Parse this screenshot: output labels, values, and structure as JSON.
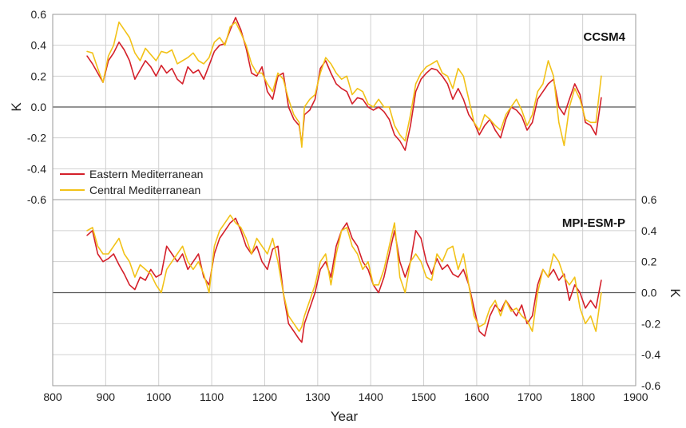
{
  "chart_data": [
    {
      "type": "line",
      "panel_label": "CCSM4",
      "ylabel": "K",
      "y_axis_side": "left",
      "ylim": [
        -0.6,
        0.6
      ],
      "yticks": [
        "0.6",
        "0.4",
        "0.2",
        "0.0",
        "-0.2",
        "-0.4",
        "-0.6"
      ],
      "xlim": [
        800,
        1900
      ],
      "legend_placement": "bottom-left",
      "series": [
        {
          "name": "Eastern Mediterranean",
          "color": "#d4202a",
          "x": [
            865,
            875,
            885,
            895,
            905,
            915,
            925,
            935,
            945,
            955,
            965,
            975,
            985,
            995,
            1005,
            1015,
            1025,
            1035,
            1045,
            1055,
            1065,
            1075,
            1085,
            1095,
            1105,
            1115,
            1125,
            1135,
            1145,
            1155,
            1165,
            1175,
            1185,
            1195,
            1205,
            1215,
            1225,
            1235,
            1245,
            1255,
            1265,
            1270,
            1275,
            1285,
            1295,
            1305,
            1315,
            1325,
            1335,
            1345,
            1355,
            1365,
            1375,
            1385,
            1395,
            1405,
            1415,
            1425,
            1435,
            1445,
            1455,
            1465,
            1475,
            1485,
            1495,
            1505,
            1515,
            1525,
            1535,
            1545,
            1555,
            1565,
            1575,
            1585,
            1595,
            1605,
            1615,
            1625,
            1635,
            1645,
            1655,
            1665,
            1675,
            1685,
            1695,
            1705,
            1715,
            1725,
            1735,
            1745,
            1755,
            1765,
            1775,
            1785,
            1795,
            1805,
            1815,
            1825,
            1835
          ],
          "values": [
            0.33,
            0.28,
            0.22,
            0.16,
            0.3,
            0.35,
            0.42,
            0.37,
            0.3,
            0.18,
            0.24,
            0.3,
            0.26,
            0.2,
            0.27,
            0.22,
            0.25,
            0.18,
            0.15,
            0.26,
            0.22,
            0.24,
            0.18,
            0.27,
            0.36,
            0.4,
            0.41,
            0.5,
            0.58,
            0.5,
            0.38,
            0.22,
            0.2,
            0.26,
            0.1,
            0.05,
            0.2,
            0.22,
            0.0,
            -0.08,
            -0.12,
            -0.24,
            -0.05,
            -0.02,
            0.05,
            0.25,
            0.3,
            0.22,
            0.15,
            0.12,
            0.1,
            0.02,
            0.06,
            0.05,
            0.0,
            -0.02,
            0.0,
            -0.03,
            -0.08,
            -0.18,
            -0.22,
            -0.28,
            -0.12,
            0.1,
            0.18,
            0.22,
            0.25,
            0.24,
            0.2,
            0.15,
            0.05,
            0.12,
            0.05,
            -0.05,
            -0.1,
            -0.18,
            -0.12,
            -0.08,
            -0.15,
            -0.2,
            -0.08,
            0.0,
            -0.02,
            -0.06,
            -0.15,
            -0.1,
            0.05,
            0.1,
            0.15,
            0.18,
            0.0,
            -0.05,
            0.05,
            0.15,
            0.08,
            -0.1,
            -0.12,
            -0.18,
            0.06
          ]
        },
        {
          "name": "Central Mediterranean",
          "color": "#f2c218",
          "x": [
            865,
            875,
            885,
            895,
            905,
            915,
            925,
            935,
            945,
            955,
            965,
            975,
            985,
            995,
            1005,
            1015,
            1025,
            1035,
            1045,
            1055,
            1065,
            1075,
            1085,
            1095,
            1105,
            1115,
            1125,
            1135,
            1145,
            1155,
            1165,
            1175,
            1185,
            1195,
            1205,
            1215,
            1225,
            1235,
            1245,
            1255,
            1265,
            1270,
            1275,
            1285,
            1295,
            1305,
            1315,
            1325,
            1335,
            1345,
            1355,
            1365,
            1375,
            1385,
            1395,
            1405,
            1415,
            1425,
            1435,
            1445,
            1455,
            1465,
            1475,
            1485,
            1495,
            1505,
            1515,
            1525,
            1535,
            1545,
            1555,
            1565,
            1575,
            1585,
            1595,
            1605,
            1615,
            1625,
            1635,
            1645,
            1655,
            1665,
            1675,
            1685,
            1695,
            1705,
            1715,
            1725,
            1735,
            1745,
            1755,
            1765,
            1775,
            1785,
            1795,
            1805,
            1815,
            1825,
            1835
          ],
          "values": [
            0.36,
            0.35,
            0.25,
            0.16,
            0.33,
            0.4,
            0.55,
            0.5,
            0.45,
            0.35,
            0.3,
            0.38,
            0.34,
            0.3,
            0.36,
            0.35,
            0.37,
            0.28,
            0.3,
            0.32,
            0.35,
            0.3,
            0.28,
            0.32,
            0.42,
            0.45,
            0.4,
            0.52,
            0.55,
            0.48,
            0.4,
            0.28,
            0.22,
            0.22,
            0.15,
            0.1,
            0.22,
            0.18,
            0.05,
            -0.05,
            -0.1,
            -0.26,
            0.0,
            0.05,
            0.08,
            0.22,
            0.32,
            0.28,
            0.22,
            0.18,
            0.2,
            0.08,
            0.12,
            0.1,
            0.02,
            0.0,
            0.05,
            0.0,
            0.0,
            -0.12,
            -0.18,
            -0.22,
            -0.05,
            0.15,
            0.22,
            0.26,
            0.28,
            0.3,
            0.22,
            0.2,
            0.12,
            0.25,
            0.2,
            0.05,
            -0.1,
            -0.15,
            -0.05,
            -0.08,
            -0.12,
            -0.15,
            -0.05,
            0.0,
            0.05,
            -0.02,
            -0.12,
            -0.05,
            0.1,
            0.15,
            0.3,
            0.2,
            -0.1,
            -0.25,
            0.0,
            0.12,
            0.05,
            -0.08,
            -0.1,
            -0.1,
            0.2
          ]
        }
      ]
    },
    {
      "type": "line",
      "panel_label": "MPI-ESM-P",
      "ylabel": "K",
      "y_axis_side": "right",
      "ylim": [
        -0.6,
        0.6
      ],
      "yticks": [
        "0.6",
        "0.4",
        "0.2",
        "0.0",
        "-0.2",
        "-0.4",
        "-0.6"
      ],
      "xlim": [
        800,
        1900
      ],
      "xticks": [
        "800",
        "900",
        "1000",
        "1100",
        "1200",
        "1300",
        "1400",
        "1500",
        "1600",
        "1700",
        "1800",
        "1900"
      ],
      "xlabel": "Year",
      "series": [
        {
          "name": "Eastern Mediterranean",
          "color": "#d4202a",
          "x": [
            865,
            875,
            885,
            895,
            905,
            915,
            925,
            935,
            945,
            955,
            965,
            975,
            985,
            995,
            1005,
            1015,
            1025,
            1035,
            1045,
            1055,
            1065,
            1075,
            1085,
            1095,
            1105,
            1115,
            1125,
            1135,
            1145,
            1155,
            1165,
            1175,
            1185,
            1195,
            1205,
            1215,
            1225,
            1235,
            1245,
            1255,
            1265,
            1270,
            1275,
            1285,
            1295,
            1305,
            1315,
            1325,
            1335,
            1345,
            1355,
            1365,
            1375,
            1385,
            1395,
            1405,
            1415,
            1425,
            1435,
            1445,
            1455,
            1465,
            1475,
            1485,
            1495,
            1505,
            1515,
            1525,
            1535,
            1545,
            1555,
            1565,
            1575,
            1585,
            1595,
            1605,
            1615,
            1625,
            1635,
            1645,
            1655,
            1665,
            1675,
            1685,
            1695,
            1705,
            1715,
            1725,
            1735,
            1745,
            1755,
            1765,
            1775,
            1785,
            1795,
            1805,
            1815,
            1825,
            1835
          ],
          "values": [
            0.37,
            0.4,
            0.25,
            0.2,
            0.22,
            0.25,
            0.18,
            0.12,
            0.05,
            0.02,
            0.1,
            0.08,
            0.15,
            0.1,
            0.12,
            0.3,
            0.25,
            0.2,
            0.25,
            0.15,
            0.2,
            0.25,
            0.1,
            0.05,
            0.25,
            0.35,
            0.4,
            0.45,
            0.48,
            0.4,
            0.3,
            0.25,
            0.3,
            0.2,
            0.15,
            0.28,
            0.3,
            0.0,
            -0.2,
            -0.25,
            -0.3,
            -0.32,
            -0.2,
            -0.1,
            0.0,
            0.15,
            0.2,
            0.1,
            0.3,
            0.4,
            0.45,
            0.35,
            0.3,
            0.2,
            0.15,
            0.05,
            0.0,
            0.1,
            0.25,
            0.4,
            0.2,
            0.1,
            0.2,
            0.4,
            0.35,
            0.2,
            0.12,
            0.22,
            0.15,
            0.18,
            0.12,
            0.1,
            0.15,
            0.05,
            -0.1,
            -0.25,
            -0.28,
            -0.15,
            -0.08,
            -0.12,
            -0.05,
            -0.1,
            -0.15,
            -0.08,
            -0.2,
            -0.15,
            0.05,
            0.15,
            0.1,
            0.15,
            0.08,
            0.12,
            -0.05,
            0.05,
            0.0,
            -0.1,
            -0.05,
            -0.1,
            0.08
          ]
        },
        {
          "name": "Central Mediterranean",
          "color": "#f2c218",
          "x": [
            865,
            875,
            885,
            895,
            905,
            915,
            925,
            935,
            945,
            955,
            965,
            975,
            985,
            995,
            1005,
            1015,
            1025,
            1035,
            1045,
            1055,
            1065,
            1075,
            1085,
            1095,
            1105,
            1115,
            1125,
            1135,
            1145,
            1155,
            1165,
            1175,
            1185,
            1195,
            1205,
            1215,
            1225,
            1235,
            1245,
            1255,
            1265,
            1270,
            1275,
            1285,
            1295,
            1305,
            1315,
            1325,
            1335,
            1345,
            1355,
            1365,
            1375,
            1385,
            1395,
            1405,
            1415,
            1425,
            1435,
            1445,
            1455,
            1465,
            1475,
            1485,
            1495,
            1505,
            1515,
            1525,
            1535,
            1545,
            1555,
            1565,
            1575,
            1585,
            1595,
            1605,
            1615,
            1625,
            1635,
            1645,
            1655,
            1665,
            1675,
            1685,
            1695,
            1705,
            1715,
            1725,
            1735,
            1745,
            1755,
            1765,
            1775,
            1785,
            1795,
            1805,
            1815,
            1825,
            1835
          ],
          "values": [
            0.4,
            0.42,
            0.3,
            0.25,
            0.25,
            0.3,
            0.35,
            0.25,
            0.2,
            0.1,
            0.18,
            0.15,
            0.12,
            0.05,
            0.0,
            0.15,
            0.2,
            0.25,
            0.3,
            0.2,
            0.15,
            0.2,
            0.12,
            0.0,
            0.3,
            0.4,
            0.45,
            0.5,
            0.45,
            0.42,
            0.35,
            0.25,
            0.35,
            0.3,
            0.25,
            0.35,
            0.2,
            0.0,
            -0.15,
            -0.2,
            -0.25,
            -0.22,
            -0.15,
            -0.05,
            0.05,
            0.2,
            0.25,
            0.05,
            0.25,
            0.4,
            0.42,
            0.3,
            0.25,
            0.15,
            0.2,
            0.05,
            0.05,
            0.15,
            0.3,
            0.45,
            0.1,
            0.0,
            0.2,
            0.25,
            0.2,
            0.1,
            0.08,
            0.25,
            0.2,
            0.28,
            0.3,
            0.15,
            0.25,
            0.05,
            -0.15,
            -0.22,
            -0.2,
            -0.1,
            -0.05,
            -0.15,
            -0.05,
            -0.12,
            -0.1,
            -0.15,
            -0.18,
            -0.25,
            0.0,
            0.15,
            0.1,
            0.25,
            0.2,
            0.1,
            0.05,
            0.1,
            -0.1,
            -0.2,
            -0.15,
            -0.25,
            0.0
          ]
        }
      ]
    }
  ]
}
